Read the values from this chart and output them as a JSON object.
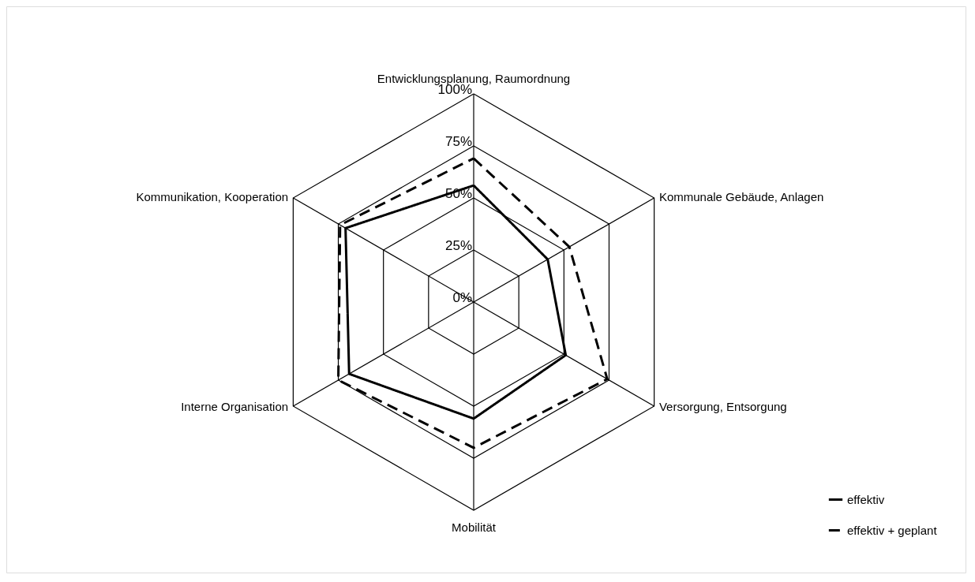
{
  "chart_data": {
    "type": "radar",
    "categories": [
      "Entwicklungsplanung, Raumordnung",
      "Kommunale Gebäude, Anlagen",
      "Versorgung, Entsorgung",
      "Mobilität",
      "Interne Organisation",
      "Kommunikation, Kooperation"
    ],
    "series": [
      {
        "name": "effektiv",
        "color": "#000000",
        "line_style": "solid",
        "values": [
          56,
          41,
          51,
          56,
          69,
          71
        ]
      },
      {
        "name": "effektiv + geplant",
        "color": "#000000",
        "line_style": "dashed",
        "values": [
          69,
          53,
          74,
          70,
          75,
          74
        ]
      }
    ],
    "ylim": [
      0,
      100
    ],
    "yticks": [
      {
        "value": 0,
        "label": "0%"
      },
      {
        "value": 25,
        "label": "25%"
      },
      {
        "value": 50,
        "label": "50%"
      },
      {
        "value": 75,
        "label": "75%"
      },
      {
        "value": 100,
        "label": "100%"
      }
    ],
    "grid": true,
    "legend": "bottom right",
    "marker": "none"
  }
}
